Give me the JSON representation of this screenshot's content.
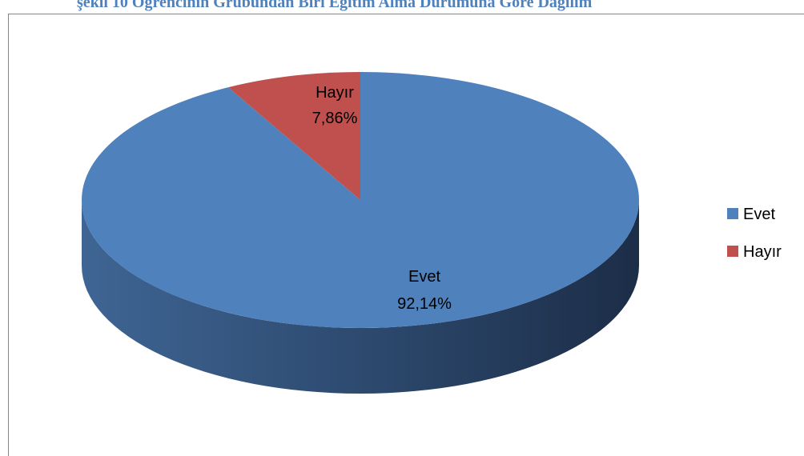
{
  "caption": {
    "text": "şekil 10 Öğrencinin Grubundan Biri Eğitim Alma Durumuna Göre Dağılım"
  },
  "chart_data": {
    "type": "pie",
    "title": "",
    "style": "3d",
    "labels": [
      "Evet",
      "Hayır"
    ],
    "values": [
      92.14,
      7.86
    ],
    "display_values": [
      "92,14%",
      "7,86%"
    ],
    "colors": [
      "#4f81bd",
      "#c0504d"
    ],
    "legend": {
      "placement": "right",
      "entries": [
        "Evet",
        "Hayır"
      ]
    }
  }
}
